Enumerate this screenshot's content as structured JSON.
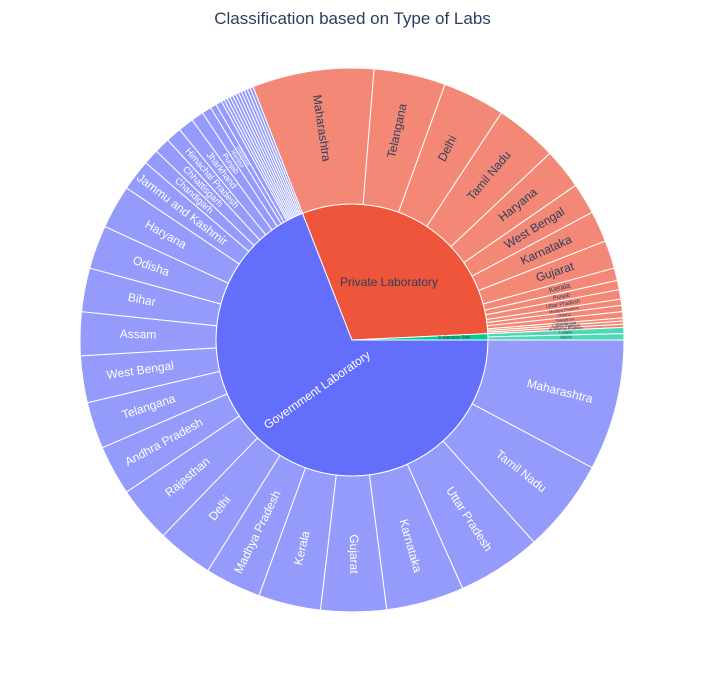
{
  "chart_data": {
    "type": "sunburst",
    "title": "Classification based on Type of Labs",
    "colors": {
      "inner": [
        "#636efa",
        "#ef553b",
        "#00cc96"
      ],
      "outer": [
        "#949bfb",
        "#f48876",
        "#4dd9b5"
      ],
      "label_dark": "#2a3f5f",
      "label_light": "#ffffff"
    },
    "groups": [
      {
        "name": "Government Laboratory",
        "children": [
          {
            "name": "Maharashtra",
            "value": 42
          },
          {
            "name": "Tamil Nadu",
            "value": 30
          },
          {
            "name": "Uttar Pradesh",
            "value": 27
          },
          {
            "name": "Karnataka",
            "value": 25
          },
          {
            "name": "Gujarat",
            "value": 21
          },
          {
            "name": "Kerala",
            "value": 20
          },
          {
            "name": "Madhya Pradesh",
            "value": 18
          },
          {
            "name": "Delhi",
            "value": 18
          },
          {
            "name": "Rajasthan",
            "value": 18
          },
          {
            "name": "Andhra Pradesh",
            "value": 16
          },
          {
            "name": "Telangana",
            "value": 15
          },
          {
            "name": "West Bengal",
            "value": 15
          },
          {
            "name": "Assam",
            "value": 14
          },
          {
            "name": "Bihar",
            "value": 14
          },
          {
            "name": "Odisha",
            "value": 14
          },
          {
            "name": "Haryana",
            "value": 14
          },
          {
            "name": "Jammu and Kashmir",
            "value": 10
          },
          {
            "name": "Chandigarh",
            "value": 5
          },
          {
            "name": "Chhattisgarh",
            "value": 5
          },
          {
            "name": "Himachal Pradesh",
            "value": 5
          },
          {
            "name": "Jharkhand",
            "value": 5
          },
          {
            "name": "Punjab",
            "value": 4
          },
          {
            "name": "Manipur",
            "value": 3
          },
          {
            "name": "Uttarakhand",
            "value": 2
          },
          {
            "name": "",
            "value": 2
          },
          {
            "name": "",
            "value": 1
          },
          {
            "name": "",
            "value": 1
          },
          {
            "name": "",
            "value": 1
          },
          {
            "name": "",
            "value": 1
          },
          {
            "name": "",
            "value": 1
          },
          {
            "name": "",
            "value": 1
          },
          {
            "name": "",
            "value": 1
          },
          {
            "name": "",
            "value": 1
          },
          {
            "name": "",
            "value": 1
          },
          {
            "name": "",
            "value": 1
          },
          {
            "name": "",
            "value": 1
          }
        ]
      },
      {
        "name": "Private Laboratory",
        "children": [
          {
            "name": "Maharashtra",
            "value": 39
          },
          {
            "name": "Telangana",
            "value": 23
          },
          {
            "name": "Delhi",
            "value": 20
          },
          {
            "name": "Tamil Nadu",
            "value": 20
          },
          {
            "name": "Haryana",
            "value": 13
          },
          {
            "name": "West Bengal",
            "value": 10
          },
          {
            "name": "Karnataka",
            "value": 10
          },
          {
            "name": "Gujarat",
            "value": 9
          },
          {
            "name": "Kerala",
            "value": 4
          },
          {
            "name": "Punjab",
            "value": 3
          },
          {
            "name": "Uttar Pradesh",
            "value": 3
          },
          {
            "name": "Madhya Pradesh",
            "value": 2
          },
          {
            "name": "Odisha",
            "value": 2
          },
          {
            "name": "Rajasthan",
            "value": 2
          },
          {
            "name": "Uttarakhand",
            "value": 1
          },
          {
            "name": "Andhra Pradesh",
            "value": 1
          },
          {
            "name": "Arunachal Pradesh",
            "value": 1
          }
        ]
      },
      {
        "name": "Collection Site",
        "children": [
          {
            "name": "Ladakh",
            "value": 2
          },
          {
            "name": "Sikkim",
            "value": 2
          }
        ]
      }
    ]
  }
}
